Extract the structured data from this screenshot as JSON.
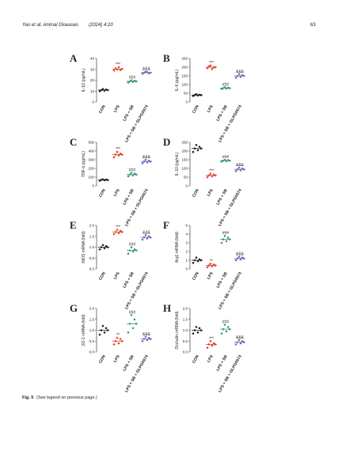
{
  "header": {
    "journal": "Yao et al. Animal Diseases",
    "citation": "(2024) 4:20",
    "page_number": "63"
  },
  "caption": {
    "label": "Fig. 5",
    "text": "(See legend on previous page.)"
  },
  "chart_data": [
    {
      "type": "dot",
      "panel": "A",
      "y_label": "IL-1β (pg/mL)",
      "categories": [
        "CON",
        "LPS",
        "LPS + SB",
        "LPS + SB + GLPG0974"
      ],
      "colors": [
        "#222222",
        "#e0452c",
        "#3a9a7a",
        "#6a6fc0"
      ],
      "points": [
        [
          10,
          11,
          12,
          10.5,
          11.5,
          11
        ],
        [
          29,
          31,
          30,
          32,
          29.5,
          30.5
        ],
        [
          18,
          19,
          20,
          18.5,
          19.5,
          19
        ],
        [
          26,
          27,
          28,
          27.5,
          26.5,
          27
        ]
      ],
      "means": [
        11,
        30.3,
        19,
        27
      ],
      "annotations": [
        null,
        "***",
        "###",
        "&&&"
      ],
      "ylim": [
        0,
        40
      ],
      "yticks": [
        0,
        10,
        20,
        30,
        40
      ]
    },
    {
      "type": "dot",
      "panel": "B",
      "y_label": "IL-6 (pg/mL)",
      "categories": [
        "CON",
        "LPS",
        "LPS + SB",
        "LPS + SB + GLPG0974"
      ],
      "colors": [
        "#222222",
        "#e0452c",
        "#3a9a7a",
        "#6a6fc0"
      ],
      "points": [
        [
          35,
          40,
          45,
          38,
          42,
          40
        ],
        [
          195,
          205,
          210,
          190,
          200,
          200
        ],
        [
          75,
          80,
          85,
          78,
          82,
          80
        ],
        [
          140,
          150,
          160,
          145,
          155,
          150
        ]
      ],
      "means": [
        40,
        200,
        80,
        150
      ],
      "annotations": [
        null,
        "***",
        "###",
        "&&&"
      ],
      "ylim": [
        0,
        250
      ],
      "yticks": [
        0,
        50,
        100,
        150,
        200,
        250
      ]
    },
    {
      "type": "dot",
      "panel": "C",
      "y_label": "TNF-α (pg/mL)",
      "categories": [
        "CON",
        "LPS",
        "LPS + SB",
        "LPS + SB + GLPG0974"
      ],
      "colors": [
        "#222222",
        "#e0452c",
        "#3a9a7a",
        "#6a6fc0"
      ],
      "points": [
        [
          60,
          70,
          75,
          65,
          72,
          68
        ],
        [
          330,
          360,
          390,
          350,
          370,
          360
        ],
        [
          110,
          130,
          150,
          120,
          140,
          130
        ],
        [
          260,
          280,
          300,
          270,
          290,
          280
        ]
      ],
      "means": [
        68,
        360,
        130,
        280
      ],
      "annotations": [
        null,
        "***",
        "###",
        "&&&"
      ],
      "ylim": [
        0,
        500
      ],
      "yticks": [
        0,
        100,
        200,
        300,
        400,
        500
      ]
    },
    {
      "type": "dot",
      "panel": "D",
      "y_label": "IL-10 (pg/mL)",
      "categories": [
        "CON",
        "LPS",
        "LPS + SB",
        "LPS + SB + GLPG0974"
      ],
      "colors": [
        "#222222",
        "#e0452c",
        "#3a9a7a",
        "#6a6fc0"
      ],
      "points": [
        [
          195,
          215,
          235,
          205,
          225,
          215
        ],
        [
          50,
          60,
          70,
          55,
          65,
          60
        ],
        [
          140,
          145,
          150,
          142,
          148,
          145
        ],
        [
          85,
          95,
          105,
          90,
          100,
          95
        ]
      ],
      "means": [
        215,
        60,
        145,
        95
      ],
      "annotations": [
        null,
        "***",
        "###",
        "&&&"
      ],
      "ylim": [
        0,
        250
      ],
      "yticks": [
        0,
        50,
        100,
        150,
        200,
        250
      ]
    },
    {
      "type": "dot",
      "panel": "E",
      "y_label": "iNOS mRNA (fold)",
      "categories": [
        "CON",
        "LPS",
        "LPS + SB",
        "LPS + SB + GLPG0974"
      ],
      "colors": [
        "#222222",
        "#e0452c",
        "#3a9a7a",
        "#6a6fc0"
      ],
      "points": [
        [
          0.9,
          1.0,
          1.1,
          0.95,
          1.05,
          1.0
        ],
        [
          1.6,
          1.7,
          1.8,
          1.65,
          1.75,
          1.7
        ],
        [
          0.7,
          0.85,
          1.0,
          0.8,
          0.9,
          0.85
        ],
        [
          1.35,
          1.45,
          1.55,
          1.4,
          1.5,
          1.45
        ]
      ],
      "means": [
        1.0,
        1.7,
        0.85,
        1.45
      ],
      "annotations": [
        null,
        "***",
        "###",
        "&&&"
      ],
      "ylim": [
        0,
        2
      ],
      "yticks": [
        {
          "value": 0,
          "label": "0.0"
        },
        0.5,
        {
          "value": 1,
          "label": "1.0"
        },
        1.5,
        {
          "value": 2,
          "label": "2.0"
        }
      ]
    },
    {
      "type": "dot",
      "panel": "F",
      "y_label": "Arg1 mRNA (fold)",
      "categories": [
        "CON",
        "LPS",
        "LPS + SB",
        "LPS + SB + GLPG0974"
      ],
      "colors": [
        "#222222",
        "#e0452c",
        "#3a9a7a",
        "#6a6fc0"
      ],
      "points": [
        [
          0.7,
          1.0,
          1.3,
          0.9,
          1.1,
          1.0
        ],
        [
          0.2,
          0.4,
          0.6,
          0.3,
          0.5,
          0.4
        ],
        [
          3.0,
          3.4,
          3.8,
          3.2,
          3.6,
          3.4
        ],
        [
          1.0,
          1.2,
          1.4,
          1.1,
          1.3,
          1.2
        ]
      ],
      "means": [
        1.0,
        0.4,
        3.4,
        1.2
      ],
      "annotations": [
        null,
        "**",
        "###",
        "&&&"
      ],
      "ylim": [
        0,
        5
      ],
      "yticks": [
        0,
        1,
        2,
        3,
        4,
        5
      ]
    },
    {
      "type": "dot",
      "panel": "G",
      "y_label": "ZO-1 mRNA (fold)",
      "categories": [
        "CON",
        "LPS",
        "LPS + SB",
        "LPS + SB + GLPG0974"
      ],
      "colors": [
        "#222222",
        "#e0452c",
        "#3a9a7a",
        "#6a6fc0"
      ],
      "points": [
        [
          0.8,
          1.0,
          1.2,
          0.9,
          1.1,
          1.0
        ],
        [
          0.35,
          0.5,
          0.65,
          0.4,
          0.6,
          0.5
        ],
        [
          0.9,
          1.3,
          1.7,
          1.1,
          1.5,
          1.3
        ],
        [
          0.5,
          0.6,
          0.7,
          0.55,
          0.65,
          0.6
        ]
      ],
      "means": [
        1.0,
        0.5,
        1.3,
        0.6
      ],
      "annotations": [
        null,
        "**",
        "###",
        "&&&"
      ],
      "ylim": [
        0,
        2
      ],
      "yticks": [
        {
          "value": 0,
          "label": "0.0"
        },
        0.5,
        {
          "value": 1,
          "label": "1.0"
        },
        1.5,
        {
          "value": 2,
          "label": "2.0"
        }
      ]
    },
    {
      "type": "dot",
      "panel": "H",
      "y_label": "Occludin mRNA (fold)",
      "categories": [
        "CON",
        "LPS",
        "LPS + SB",
        "LPS + SB + GLPG0974"
      ],
      "colors": [
        "#222222",
        "#e0452c",
        "#3a9a7a",
        "#6a6fc0"
      ],
      "points": [
        [
          0.85,
          1.0,
          1.15,
          0.9,
          1.1,
          1.0
        ],
        [
          0.2,
          0.35,
          0.5,
          0.3,
          0.4,
          0.35
        ],
        [
          0.85,
          1.05,
          1.25,
          0.95,
          1.15,
          1.05
        ],
        [
          0.35,
          0.45,
          0.55,
          0.4,
          0.5,
          0.45
        ]
      ],
      "means": [
        1.0,
        0.35,
        1.05,
        0.45
      ],
      "annotations": [
        null,
        "***",
        "###",
        "&&&"
      ],
      "ylim": [
        0,
        2
      ],
      "yticks": [
        {
          "value": 0,
          "label": "0.0"
        },
        0.5,
        {
          "value": 1,
          "label": "1.0"
        },
        1.5,
        {
          "value": 2,
          "label": "2.0"
        }
      ]
    }
  ]
}
